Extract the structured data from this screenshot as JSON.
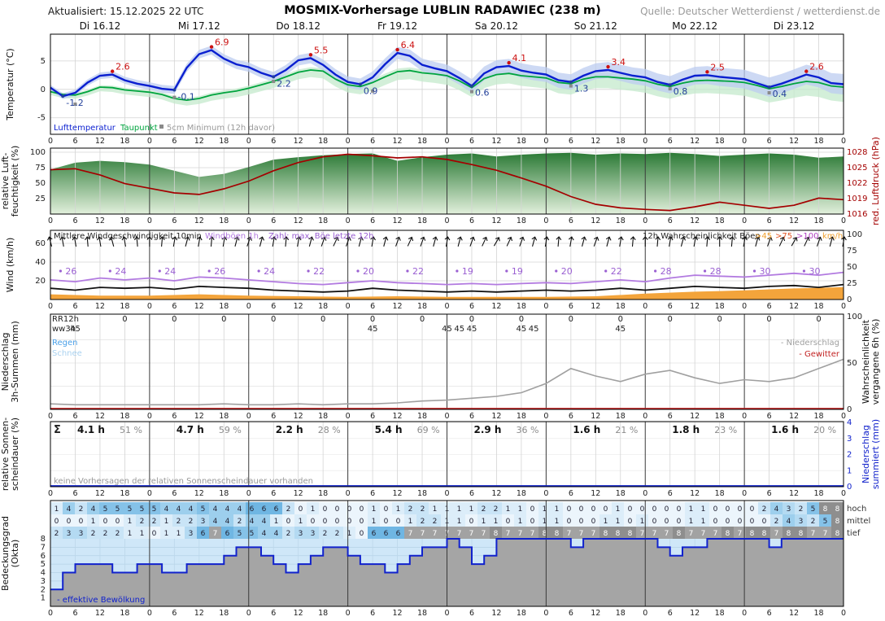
{
  "header": {
    "updated": "Aktualisiert: 15.12.2025 22 UTC",
    "title": "MOSMIX-Vorhersage LUBLIN RADAWIEC (238 m)",
    "source": "Quelle: Deutscher Wetterdienst / wetterdienst.de"
  },
  "days": [
    "Di 16.12",
    "Mi 17.12",
    "Do 18.12",
    "Fr 19.12",
    "Sa 20.12",
    "So 21.12",
    "Mo 22.12",
    "Di 23.12"
  ],
  "hour_tick_labels": [
    "0",
    "6",
    "12",
    "18"
  ],
  "colors": {
    "air_temp": "#0a1fd0",
    "dew_point": "#00a43e",
    "air_band": "#bcccf0",
    "dew_band": "#c4e9cc",
    "max_label": "#cc1111",
    "min_label": "#223f9a",
    "ground_marker": "#8a8a8a",
    "humidity_dark": "#2c7a36",
    "humidity_light": "#e2f0dc",
    "pressure": "#a40000",
    "wind_mean": "#111111",
    "wind_gust": "#b27ae0",
    "gust_number": "#9a5fd2",
    "gust_prob": "#f3a43b",
    "thresh45": "#f0a030",
    "thresh75": "#e05525",
    "thresh100": "#b040c0",
    "prob_line": "#a0a0a0",
    "rain": "#4aa0e8",
    "snow": "#aad2f0",
    "thunder": "#c22222",
    "precip_sum": "#1122cc",
    "cloud_line": "#1122cc",
    "cloud_fill": "#a5a5a5",
    "cloud_bg": "#cfe7f8",
    "okta_scale": [
      "#ecf5fc",
      "#dcedf9",
      "#c9e4f6",
      "#b4daf2",
      "#9dcfed",
      "#85c2e8",
      "#6fb6e3",
      "#a2a2a2",
      "#8e8e8e"
    ],
    "grid_minor": "#d4d4d4",
    "grid_day": "#3a3a3a",
    "text_gray": "#8c8c8c"
  },
  "chart_data": [
    {
      "name": "temperature",
      "type": "line",
      "ylabel_lines": [
        "Temperatur (°C)"
      ],
      "yticks": [
        5,
        0,
        -5
      ],
      "ylim": [
        -7.9,
        9.7
      ],
      "hours_step": 3,
      "legend": {
        "air": "Lufttemperatur",
        "dew": "Taupunkt",
        "ground": "5cm Minimum (12h davor)"
      },
      "air": [
        0.3,
        -1.2,
        -0.6,
        1.2,
        2.4,
        2.6,
        1.6,
        1.0,
        0.6,
        0.1,
        -0.1,
        3.8,
        6.2,
        6.9,
        5.4,
        4.4,
        3.9,
        2.9,
        2.2,
        3.4,
        5.1,
        5.5,
        4.3,
        2.6,
        1.3,
        0.9,
        2.1,
        4.4,
        6.4,
        5.9,
        4.3,
        3.7,
        3.2,
        2.0,
        0.6,
        2.8,
        3.9,
        4.1,
        3.3,
        2.9,
        2.6,
        1.6,
        1.3,
        2.4,
        3.2,
        3.4,
        2.9,
        2.4,
        2.1,
        1.3,
        0.8,
        1.7,
        2.4,
        2.5,
        2.2,
        2.0,
        1.8,
        1.1,
        0.4,
        1.0,
        1.8,
        2.6,
        2.1,
        1.1,
        0.9
      ],
      "dew": [
        -0.4,
        -0.9,
        -1.0,
        -0.4,
        0.4,
        0.3,
        -0.1,
        -0.3,
        -0.5,
        -0.9,
        -1.6,
        -1.9,
        -1.6,
        -1.0,
        -0.6,
        -0.3,
        0.2,
        0.8,
        1.4,
        2.2,
        3.0,
        3.4,
        3.2,
        1.8,
        0.8,
        0.5,
        1.2,
        2.2,
        3.1,
        3.3,
        2.9,
        2.7,
        2.4,
        1.5,
        0.3,
        1.9,
        2.6,
        2.8,
        2.4,
        2.2,
        2.0,
        1.2,
        1.0,
        1.8,
        2.2,
        2.2,
        2.0,
        1.8,
        1.5,
        0.9,
        0.5,
        1.1,
        1.5,
        1.6,
        1.5,
        1.4,
        1.2,
        0.7,
        0.1,
        0.5,
        1.0,
        1.4,
        1.2,
        0.6,
        0.4
      ],
      "daily_max": [
        {
          "hour": 15,
          "value": 2.6
        },
        {
          "hour": 39,
          "value": 6.9
        },
        {
          "hour": 63,
          "value": 5.5
        },
        {
          "hour": 84,
          "value": 6.4
        },
        {
          "hour": 111,
          "value": 4.1
        },
        {
          "hour": 135,
          "value": 3.4
        },
        {
          "hour": 159,
          "value": 2.5
        },
        {
          "hour": 183,
          "value": 2.6
        }
      ],
      "daily_min": [
        {
          "hour": 3,
          "value": -1.2
        },
        {
          "hour": 30,
          "value": -0.1
        },
        {
          "hour": 54,
          "value": 2.2
        },
        {
          "hour": 75,
          "value": 0.9
        },
        {
          "hour": 102,
          "value": 0.6
        },
        {
          "hour": 126,
          "value": 1.3
        },
        {
          "hour": 150,
          "value": 0.8
        },
        {
          "hour": 174,
          "value": 0.4
        }
      ],
      "ground_min_5cm": [
        {
          "hour": 6,
          "value": -2.6
        },
        {
          "hour": 30,
          "value": -1.4
        },
        {
          "hour": 54,
          "value": 1.4
        },
        {
          "hour": 78,
          "value": -0.3
        },
        {
          "hour": 102,
          "value": -0.4
        },
        {
          "hour": 126,
          "value": 0.6
        },
        {
          "hour": 150,
          "value": 0.1
        },
        {
          "hour": 174,
          "value": -0.6
        }
      ],
      "band": {
        "air_start": 0.5,
        "air_end": 1.8,
        "dew_up_start": 0.3,
        "dew_up_end": 0.9,
        "dew_down_start": 0.6,
        "dew_down_end": 2.6
      }
    },
    {
      "name": "humidity_pressure",
      "type": "area+line",
      "ylabel_lines": [
        "relative Luft-",
        "feuchtigkeit (%)"
      ],
      "right_label_lines": [
        "red. Luftdruck (hPa)"
      ],
      "yticks": [
        100,
        75,
        50,
        25
      ],
      "right_yticks": [
        1028,
        1025,
        1022,
        1019,
        1016
      ],
      "hours_step": 6,
      "humidity": [
        72,
        83,
        86,
        84,
        80,
        70,
        60,
        65,
        76,
        88,
        92,
        95,
        97,
        98,
        86,
        92,
        96,
        98,
        93,
        96,
        98,
        99,
        96,
        98,
        97,
        99,
        97,
        94,
        96,
        98,
        96,
        91,
        93
      ],
      "pressure": [
        1024.6,
        1024.8,
        1023.6,
        1021.9,
        1021.0,
        1020.1,
        1019.8,
        1020.9,
        1022.4,
        1024.4,
        1026.0,
        1027.1,
        1027.6,
        1027.3,
        1026.9,
        1027.1,
        1026.6,
        1025.6,
        1024.5,
        1023.0,
        1021.4,
        1019.4,
        1017.9,
        1017.2,
        1016.9,
        1016.7,
        1017.4,
        1018.3,
        1017.7,
        1017.1,
        1017.7,
        1019.1,
        1018.8
      ]
    },
    {
      "name": "wind",
      "type": "line",
      "ylabel_lines": [
        "Wind (km/h)"
      ],
      "yticks": [
        60,
        40,
        20
      ],
      "right_yticks": [
        100,
        75,
        50,
        25,
        0
      ],
      "hours_step": 6,
      "legend": {
        "mean": "Mittlere Windgeschwindigkeit 10min",
        "gust": "Windböen 1h",
        "number": "Zahl: max. Böe letzte 12h",
        "prob": "12h Wahrscheinlichkeit Böen",
        "thresholds": [
          ">45",
          ">75",
          ">100"
        ],
        "unit": "km/h"
      },
      "mean": [
        12,
        10,
        13,
        12,
        13,
        11,
        14,
        13,
        12,
        10,
        9,
        8,
        9,
        12,
        10,
        9,
        8,
        9,
        8,
        9,
        10,
        9,
        10,
        12,
        10,
        12,
        14,
        13,
        12,
        14,
        15,
        13,
        16
      ],
      "gust": [
        21,
        19,
        23,
        21,
        23,
        20,
        24,
        23,
        21,
        19,
        17,
        16,
        18,
        20,
        18,
        17,
        16,
        17,
        16,
        17,
        18,
        17,
        19,
        21,
        19,
        23,
        26,
        25,
        24,
        26,
        28,
        26,
        29
      ],
      "gust_max_12h": {
        "hours": [
          5,
          17,
          29,
          41,
          53,
          65,
          77,
          89,
          101,
          113,
          125,
          137,
          149,
          161,
          173,
          185
        ],
        "values": [
          26,
          24,
          24,
          26,
          24,
          22,
          20,
          22,
          19,
          19,
          20,
          22,
          28,
          28,
          30,
          30
        ]
      },
      "direction_deg": [
        -15,
        -10,
        -10,
        -5,
        -10,
        -15,
        -10,
        -5,
        0,
        5,
        10,
        15,
        10,
        5,
        10,
        15,
        20,
        15,
        10,
        5,
        10,
        15,
        20,
        25,
        20,
        15,
        10,
        15,
        20,
        25,
        20,
        15,
        10,
        15,
        20,
        25,
        30,
        25,
        20,
        15,
        10,
        5,
        10,
        15,
        20,
        15,
        10,
        5,
        0,
        5,
        10,
        15,
        10,
        5,
        0,
        5,
        10,
        15,
        20,
        25,
        30,
        25,
        20,
        15,
        10
      ],
      "gust_prob_12h": [
        8,
        6,
        6,
        8,
        6,
        5,
        4,
        5,
        4,
        4,
        4,
        5,
        9,
        12,
        14,
        17,
        19
      ]
    },
    {
      "name": "precipitation",
      "type": "line",
      "ylabel_lines": [
        "Niederschlag",
        "3h-Summen (mm)"
      ],
      "right_label_lines": [
        "Wahrscheinlichkeit",
        "vergangene 6h (%)"
      ],
      "right_yticks": [
        100,
        50,
        0
      ],
      "row_labels": {
        "rr": "RR12h",
        "ww": "ww3h"
      },
      "legend": {
        "rain": "Regen",
        "snow": "Schnee",
        "prob": "- Niederschlag",
        "thunder": "- Gewitter"
      },
      "rr12h": {
        "hours": [
          18,
          30,
          42,
          54,
          66,
          78,
          90,
          102,
          114,
          126,
          138,
          150,
          162,
          174,
          186
        ],
        "values": [
          "0",
          "0",
          "0",
          "0",
          "0",
          "0",
          "0",
          "0",
          "0",
          "0",
          "0",
          "0",
          "0",
          "0",
          "0"
        ]
      },
      "ww3h": {
        "hours": [
          6,
          78,
          96,
          99,
          102,
          114,
          117,
          138
        ],
        "values": [
          "45",
          "45",
          "45",
          "45",
          "45",
          "45",
          "45",
          "45"
        ]
      },
      "hours_step": 6,
      "precip_prob_6h": [
        6,
        5,
        5,
        5,
        5,
        5,
        5,
        6,
        5,
        5,
        6,
        5,
        6,
        6,
        7,
        9,
        10,
        12,
        14,
        18,
        28,
        44,
        36,
        30,
        38,
        42,
        34,
        28,
        32,
        30,
        34,
        44,
        54
      ],
      "thunder_prob": 0
    },
    {
      "name": "sunshine",
      "type": "table",
      "ylabel_lines": [
        "relative Sonnen-",
        "scheindauer (%)"
      ],
      "right_label_lines": [
        "Niederschlag",
        "summiert (mm)"
      ],
      "right_yticks": [
        4,
        3,
        2,
        1,
        0
      ],
      "sigma": "Σ",
      "daily": [
        {
          "hours": "4.1 h",
          "percent": "51 %"
        },
        {
          "hours": "4.7 h",
          "percent": "59 %"
        },
        {
          "hours": "2.2 h",
          "percent": "28 %"
        },
        {
          "hours": "5.4 h",
          "percent": "69 %"
        },
        {
          "hours": "2.9 h",
          "percent": "36 %"
        },
        {
          "hours": "1.6 h",
          "percent": "21 %"
        },
        {
          "hours": "1.8 h",
          "percent": "23 %"
        },
        {
          "hours": "1.6 h",
          "percent": "20 %"
        }
      ],
      "note": "keine Vorhersagen der relativen Sonnenscheindauer vorhanden",
      "precip_sum_mm_line": 0
    },
    {
      "name": "cloud_cover",
      "type": "heatmap+line",
      "ylabel_lines": [
        "Bedeckungsgrad",
        "(Okta)"
      ],
      "yticks": [
        8,
        7,
        6,
        5,
        4,
        3,
        2,
        1
      ],
      "row_labels": [
        "hoch",
        "mittel",
        "tief"
      ],
      "legend": "- effektive Bewölkung",
      "hours_step": 3,
      "hoch": [
        1,
        4,
        2,
        4,
        5,
        5,
        5,
        5,
        5,
        4,
        4,
        4,
        5,
        4,
        4,
        4,
        6,
        6,
        6,
        2,
        0,
        1,
        0,
        0,
        0,
        0,
        1,
        0,
        1,
        2,
        2,
        1,
        1,
        1,
        1,
        2,
        2,
        1,
        1,
        0,
        1,
        1,
        0,
        0,
        0,
        0,
        1,
        0,
        0,
        0,
        0,
        0,
        1,
        1,
        0,
        0,
        0,
        0,
        2,
        4,
        3,
        2,
        5,
        8,
        8
      ],
      "mittel": [
        0,
        0,
        0,
        1,
        0,
        0,
        1,
        2,
        2,
        1,
        2,
        2,
        3,
        4,
        4,
        2,
        4,
        4,
        1,
        0,
        1,
        0,
        0,
        0,
        0,
        0,
        1,
        0,
        0,
        1,
        2,
        2,
        1,
        1,
        0,
        1,
        1,
        0,
        1,
        0,
        1,
        1,
        0,
        0,
        0,
        1,
        1,
        0,
        1,
        0,
        0,
        0,
        1,
        1,
        0,
        0,
        0,
        0,
        0,
        2,
        4,
        3,
        2,
        5,
        8
      ],
      "tief": [
        2,
        3,
        3,
        2,
        2,
        2,
        1,
        1,
        0,
        1,
        1,
        3,
        6,
        7,
        6,
        5,
        5,
        4,
        4,
        2,
        3,
        3,
        2,
        2,
        1,
        0,
        6,
        6,
        6,
        7,
        7,
        7,
        7,
        7,
        7,
        7,
        8,
        7,
        7,
        7,
        8,
        8,
        7,
        7,
        7,
        8,
        8,
        8,
        7,
        7,
        7,
        8,
        7,
        7,
        7,
        8,
        7,
        8,
        8,
        7,
        8,
        8,
        7,
        7,
        8
      ],
      "effective": [
        2,
        4,
        5,
        5,
        5,
        4,
        4,
        5,
        5,
        4,
        4,
        5,
        5,
        5,
        6,
        7,
        7,
        6,
        5,
        4,
        5,
        6,
        7,
        7,
        6,
        5,
        5,
        4,
        5,
        6,
        7,
        7,
        8,
        7,
        5,
        6,
        8,
        8,
        8,
        8,
        8,
        8,
        7,
        8,
        8,
        8,
        8,
        8,
        8,
        7,
        6,
        7,
        7,
        8,
        8,
        8,
        8,
        8,
        7,
        8,
        8,
        8,
        8,
        8,
        8
      ]
    }
  ]
}
